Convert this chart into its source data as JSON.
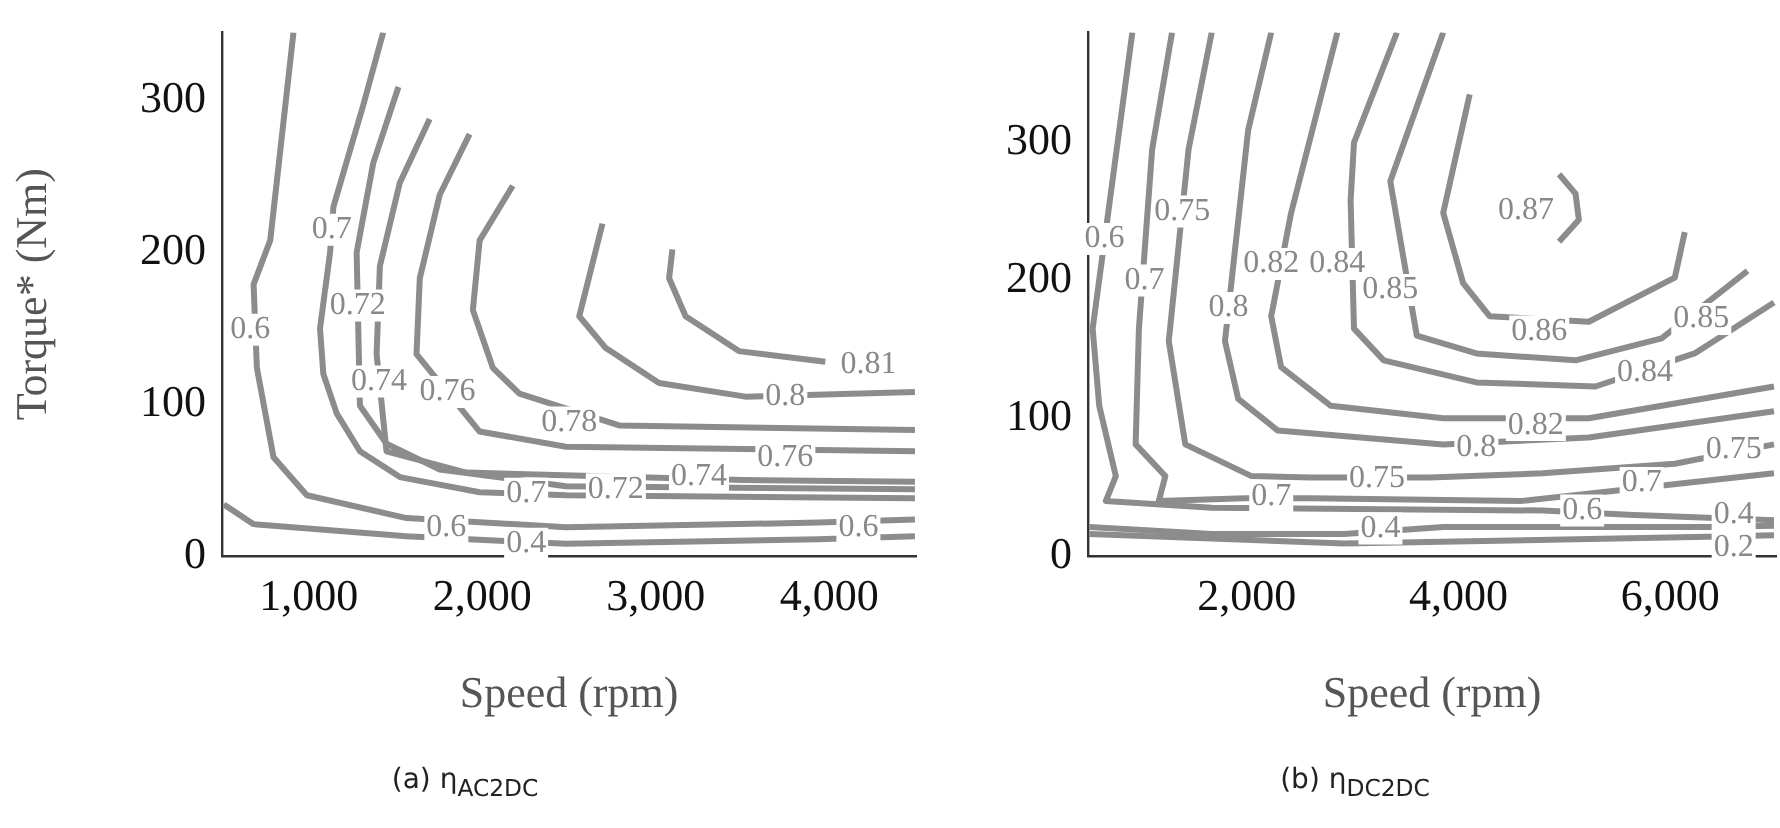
{
  "chart_data": [
    {
      "type": "line",
      "title": "(a) η$_{AC2DC}$",
      "xlabel": "Speed (rpm)",
      "ylabel": "Torque* (Nm)",
      "xlim": [
        500,
        4500
      ],
      "ylim": [
        0,
        345
      ],
      "xticks": [
        {
          "value": 1000,
          "label": "1,000"
        },
        {
          "value": 2000,
          "label": "2,000"
        },
        {
          "value": 3000,
          "label": "3,000"
        },
        {
          "value": 4000,
          "label": "4,000"
        }
      ],
      "yticks": [
        0,
        100,
        200,
        300
      ],
      "grid": false,
      "legend": false,
      "marker": "none",
      "series": [
        {
          "color": "#8c8c8c",
          "x": [
            912,
            778,
            682,
            701,
            797,
            989,
            1563,
            2483,
            3938,
            4494
          ],
          "values": [
            345,
            208,
            179,
            124,
            65,
            40,
            25,
            19,
            22,
            24
          ]
        },
        {
          "color": "#8c8c8c",
          "x": [
            510,
            682,
            1563,
            2483,
            3938,
            4494
          ],
          "values": [
            34,
            21,
            13,
            8,
            11,
            13
          ]
        },
        {
          "color": "#8c8c8c",
          "x": [
            1429,
            1314,
            1142,
            1123,
            1065,
            1084,
            1161,
            1295,
            1525,
            1985,
            2483,
            4494
          ],
          "values": [
            345,
            297,
            230,
            200,
            150,
            120,
            94,
            69,
            52,
            42,
            40,
            38
          ]
        },
        {
          "color": "#8c8c8c",
          "x": [
            1517,
            1372,
            1276,
            1295,
            1448,
            1755,
            2483,
            4494
          ],
          "values": [
            309,
            259,
            200,
            99,
            74,
            57,
            46,
            44
          ]
        },
        {
          "color": "#8c8c8c",
          "x": [
            1697,
            1525,
            1410,
            1391,
            1448,
            1908,
            3500,
            4494
          ],
          "values": [
            288,
            246,
            191,
            133,
            69,
            55,
            50,
            49
          ]
        },
        {
          "color": "#8c8c8c",
          "x": [
            1927,
            1755,
            1640,
            1621,
            1985,
            2483,
            4494
          ],
          "values": [
            278,
            238,
            183,
            133,
            82,
            72,
            69
          ]
        },
        {
          "color": "#8c8c8c",
          "x": [
            2176,
            1985,
            1946,
            2061,
            2214,
            2789,
            4494
          ],
          "values": [
            244,
            208,
            162,
            124,
            107,
            86,
            83
          ]
        },
        {
          "color": "#8c8c8c",
          "x": [
            2693,
            2559,
            2712,
            3019,
            3517,
            4494
          ],
          "values": [
            219,
            158,
            137,
            114,
            105,
            108
          ]
        },
        {
          "color": "#8c8c8c",
          "x": [
            3096,
            3077,
            3172,
            3479,
            3977
          ],
          "values": [
            202,
            183,
            158,
            135,
            128
          ]
        }
      ],
      "annotations": [
        {
          "text": "0.6",
          "x": 663,
          "y": 149
        },
        {
          "text": "0.7",
          "x": 1133,
          "y": 215
        },
        {
          "text": "0.72",
          "x": 1283,
          "y": 165
        },
        {
          "text": "0.74",
          "x": 1405,
          "y": 115
        },
        {
          "text": "0.76",
          "x": 1800,
          "y": 108
        },
        {
          "text": "0.78",
          "x": 2502,
          "y": 88
        },
        {
          "text": "0.8",
          "x": 3747,
          "y": 105
        },
        {
          "text": "0.81",
          "x": 4226,
          "y": 126
        },
        {
          "text": "0.7",
          "x": 2253,
          "y": 41
        },
        {
          "text": "0.72",
          "x": 2770,
          "y": 44
        },
        {
          "text": "0.74",
          "x": 3249,
          "y": 52
        },
        {
          "text": "0.76",
          "x": 3747,
          "y": 65
        },
        {
          "text": "0.6",
          "x": 1793,
          "y": 19
        },
        {
          "text": "0.4",
          "x": 2253,
          "y": 8
        },
        {
          "text": "0.6",
          "x": 4168,
          "y": 19
        }
      ]
    },
    {
      "type": "line",
      "title": "(b) η$_{DC2DC}$",
      "xlabel": "Speed (rpm)",
      "xlim": [
        500,
        7000
      ],
      "ylim": [
        0,
        380
      ],
      "xticks": [
        {
          "value": 2000,
          "label": "2,000"
        },
        {
          "value": 4000,
          "label": "4,000"
        },
        {
          "value": 6000,
          "label": "6,000"
        }
      ],
      "yticks": [
        0,
        100,
        200,
        300
      ],
      "grid": false,
      "legend": false,
      "marker": "none",
      "series": [
        {
          "color": "#8c8c8c",
          "x": [
            919,
            731,
            544,
            606,
            763,
            669,
            1669,
            4794,
            5606,
            6981
          ],
          "values": [
            380,
            272,
            165,
            109,
            58,
            40,
            35,
            33,
            30,
            26
          ]
        },
        {
          "color": "#8c8c8c",
          "x": [
            1294,
            1106,
            981,
            950,
            1231,
            1169,
            1981,
            2606,
            4600,
            6981
          ],
          "values": [
            380,
            295,
            165,
            81,
            58,
            40,
            42,
            42,
            40,
            60
          ]
        },
        {
          "color": "#8c8c8c",
          "x": [
            1669,
            1450,
            1263,
            1419,
            2044,
            2606,
            3731,
            4794,
            6044,
            6981
          ],
          "values": [
            380,
            295,
            156,
            81,
            58,
            57,
            57,
            60,
            67,
            81
          ]
        },
        {
          "color": "#8c8c8c",
          "x": [
            2231,
            2013,
            1794,
            1919,
            2294,
            3856,
            5231,
            6981
          ],
          "values": [
            380,
            309,
            156,
            114,
            91,
            81,
            86,
            105
          ]
        },
        {
          "color": "#8c8c8c",
          "x": [
            2856,
            2419,
            2231,
            2325,
            2794,
            3856,
            5231,
            6981
          ],
          "values": [
            380,
            249,
            174,
            137,
            109,
            100,
            100,
            123
          ]
        },
        {
          "color": "#8c8c8c",
          "x": [
            3419,
            3013,
            2981,
            3013,
            3294,
            4169,
            5294,
            6231,
            6981
          ],
          "values": [
            380,
            300,
            258,
            165,
            142,
            126,
            123,
            147,
            184
          ]
        },
        {
          "color": "#8c8c8c",
          "x": [
            3856,
            3356,
            3606,
            4169,
            5106,
            5919,
            6731
          ],
          "values": [
            380,
            272,
            160,
            147,
            142,
            158,
            207
          ]
        },
        {
          "color": "#8c8c8c",
          "x": [
            4106,
            3856,
            4044,
            4294,
            5231,
            6044,
            6138
          ],
          "values": [
            335,
            249,
            198,
            174,
            170,
            202,
            235
          ]
        },
        {
          "color": "#8c8c8c",
          "x": [
            4950,
            5106,
            5138,
            4950
          ],
          "values": [
            277,
            263,
            244,
            228
          ]
        },
        {
          "color": "#8c8c8c",
          "x": [
            512,
            1669,
            2919,
            3856,
            6356,
            6981
          ],
          "values": [
            21,
            16,
            16,
            21,
            21,
            22
          ]
        },
        {
          "color": "#8c8c8c",
          "x": [
            512,
            2919,
            6356,
            6981
          ],
          "values": [
            16,
            9,
            14,
            15
          ]
        }
      ],
      "annotations": [
        {
          "text": "0.6",
          "x": 657,
          "y": 230
        },
        {
          "text": "0.7",
          "x": 1034,
          "y": 200
        },
        {
          "text": "0.75",
          "x": 1390,
          "y": 250
        },
        {
          "text": "0.8",
          "x": 1828,
          "y": 180
        },
        {
          "text": "0.82",
          "x": 2231,
          "y": 212
        },
        {
          "text": "0.84",
          "x": 2856,
          "y": 212
        },
        {
          "text": "0.85",
          "x": 3356,
          "y": 193
        },
        {
          "text": "0.86",
          "x": 4763,
          "y": 163
        },
        {
          "text": "0.85",
          "x": 6294,
          "y": 172
        },
        {
          "text": "0.84",
          "x": 5763,
          "y": 133
        },
        {
          "text": "0.82",
          "x": 4731,
          "y": 95
        },
        {
          "text": "0.8",
          "x": 4169,
          "y": 79
        },
        {
          "text": "0.75",
          "x": 3231,
          "y": 56
        },
        {
          "text": "0.7",
          "x": 2231,
          "y": 43
        },
        {
          "text": "0.4",
          "x": 3263,
          "y": 20
        },
        {
          "text": "0.6",
          "x": 5169,
          "y": 33
        },
        {
          "text": "0.7",
          "x": 5731,
          "y": 53
        },
        {
          "text": "0.75",
          "x": 6600,
          "y": 77
        },
        {
          "text": "0.4",
          "x": 6600,
          "y": 30
        },
        {
          "text": "0.2",
          "x": 6600,
          "y": 6
        },
        {
          "text": "0.87",
          "x": 4638,
          "y": 251
        }
      ]
    }
  ]
}
